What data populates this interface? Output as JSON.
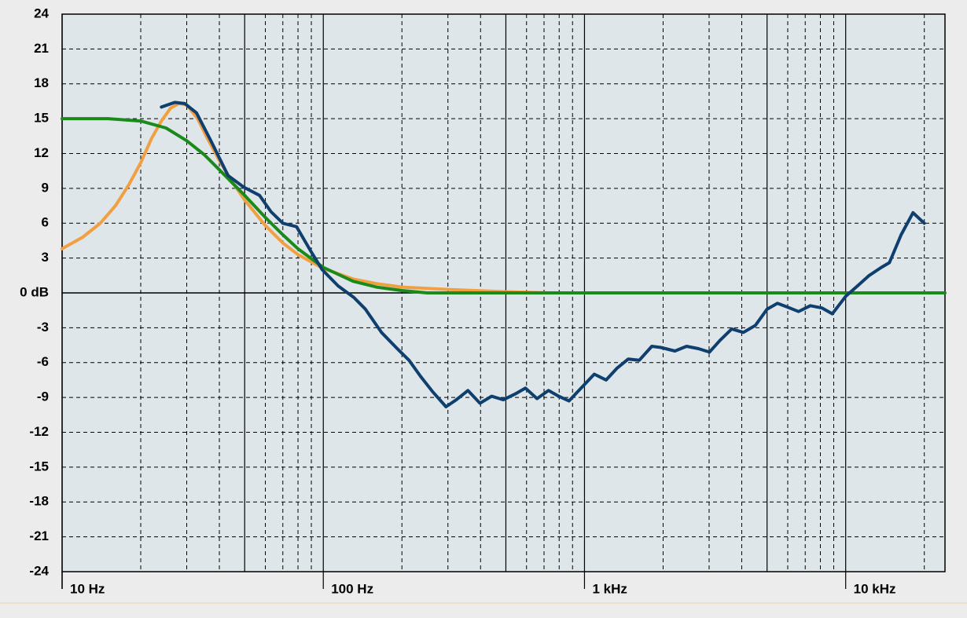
{
  "chart_data": {
    "type": "line",
    "xscale": "log",
    "xlim": [
      10,
      24000
    ],
    "ylim": [
      -24,
      24
    ],
    "xticks": [
      {
        "value": 10,
        "label": "10 Hz"
      },
      {
        "value": 100,
        "label": "100 Hz"
      },
      {
        "value": 1000,
        "label": "1 kHz"
      },
      {
        "value": 10000,
        "label": "10 kHz"
      }
    ],
    "x_major_grid": [
      50,
      500,
      5000
    ],
    "x_minor_grid": [
      20,
      30,
      40,
      60,
      70,
      80,
      90,
      200,
      300,
      400,
      600,
      700,
      800,
      900,
      2000,
      3000,
      4000,
      6000,
      7000,
      8000,
      9000,
      20000
    ],
    "yticks": [
      -24,
      -21,
      -18,
      -15,
      -12,
      -9,
      -6,
      -3,
      {
        "value": 0,
        "label": "0 dB"
      },
      3,
      6,
      9,
      12,
      15,
      18,
      21,
      24
    ],
    "grid": true,
    "series": [
      {
        "color": "#f0a040",
        "x": [
          10,
          12,
          14,
          16,
          18,
          20,
          22,
          24,
          26,
          28,
          30,
          33,
          36,
          40,
          45,
          50,
          60,
          70,
          80,
          100,
          130,
          160,
          200,
          300,
          500,
          740
        ],
        "values": [
          3.8,
          4.8,
          6.0,
          7.5,
          9.3,
          11.2,
          13.3,
          14.8,
          15.9,
          16.3,
          16.2,
          15.0,
          13.3,
          11.4,
          9.5,
          8.0,
          5.8,
          4.3,
          3.3,
          2.1,
          1.2,
          0.8,
          0.5,
          0.3,
          0.1,
          0
        ]
      },
      {
        "color": "#1a8a1a",
        "x": [
          10,
          15,
          20,
          25,
          30,
          35,
          40,
          50,
          60,
          70,
          80,
          100,
          130,
          160,
          200,
          250,
          24000
        ],
        "values": [
          15,
          15,
          14.8,
          14.2,
          13.1,
          11.9,
          10.6,
          8.4,
          6.5,
          5.0,
          3.8,
          2.2,
          1.0,
          0.5,
          0.2,
          0,
          0
        ]
      },
      {
        "color": "#0e3f6e",
        "x": [
          24,
          27,
          29.5,
          32.7,
          37.1,
          43.2,
          49.6,
          57,
          63,
          70,
          79,
          89,
          99,
          114,
          131,
          145,
          167,
          192,
          213,
          236,
          262,
          295,
          323,
          358,
          398,
          441,
          489,
          543,
          594,
          658,
          728,
          797,
          872,
          970,
          1090,
          1210,
          1330,
          1470,
          1620,
          1810,
          1960,
          2220,
          2460,
          2730,
          3010,
          3300,
          3660,
          4060,
          4510,
          5000,
          5480,
          5950,
          6600,
          7320,
          8120,
          8890,
          10000,
          11100,
          12300,
          13700,
          14700,
          16300,
          18100,
          20000
        ],
        "values": [
          16.0,
          16.4,
          16.3,
          15.5,
          13.1,
          10.1,
          9.1,
          8.4,
          7.0,
          6.0,
          5.7,
          3.7,
          2.0,
          0.6,
          -0.4,
          -1.4,
          -3.4,
          -4.8,
          -5.8,
          -7.2,
          -8.5,
          -9.8,
          -9.2,
          -8.4,
          -9.5,
          -8.9,
          -9.2,
          -8.7,
          -8.2,
          -9.1,
          -8.4,
          -8.9,
          -9.3,
          -8.2,
          -7.0,
          -7.5,
          -6.5,
          -5.7,
          -5.8,
          -4.6,
          -4.7,
          -5.0,
          -4.6,
          -4.8,
          -5.1,
          -4.1,
          -3.1,
          -3.4,
          -2.8,
          -1.4,
          -0.9,
          -1.2,
          -1.6,
          -1.1,
          -1.3,
          -1.8,
          -0.3,
          0.6,
          1.5,
          2.2,
          2.6,
          5.0,
          6.9,
          6.0
        ]
      }
    ]
  }
}
